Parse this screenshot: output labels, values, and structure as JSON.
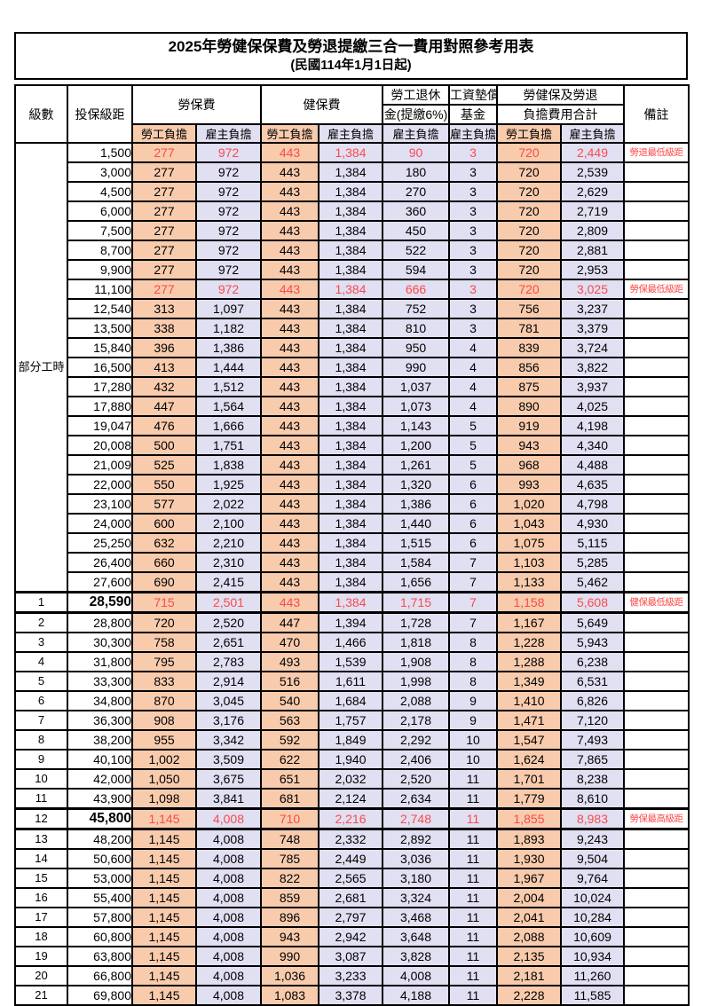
{
  "title": "2025年勞健保保費及勞退提繳三合一費用對照參考用表",
  "subtitle": "(民國114年1月1日起)",
  "header": {
    "level": "級數",
    "bracket": "投保級距",
    "labor_insurance": "勞保費",
    "health_insurance": "健保費",
    "pension_line1": "勞工退休",
    "pension_line2": "金(提繳6%)",
    "wage_fund_line1": "工資墊償",
    "wage_fund_line2": "基金",
    "total_line1": "勞健保及勞退",
    "total_line2": "負擔費用合計",
    "note": "備註",
    "employee_share": "勞工負擔",
    "employer_share": "雇主負擔"
  },
  "part_time_label": "部分工時",
  "colors": {
    "employee_bg": "#F8CBAD",
    "employer_bg": "#E1DFF2",
    "highlight_text": "#FB4A4A",
    "border": "#000000"
  },
  "rows": [
    {
      "level": "",
      "bracket": "1,500",
      "values": [
        "277",
        "972",
        "443",
        "1,384",
        "90",
        "3",
        "720",
        "2,449"
      ],
      "note": "勞退最低級距",
      "red": true,
      "bold": false
    },
    {
      "level": "",
      "bracket": "3,000",
      "values": [
        "277",
        "972",
        "443",
        "1,384",
        "180",
        "3",
        "720",
        "2,539"
      ],
      "note": "",
      "red": false,
      "bold": false
    },
    {
      "level": "",
      "bracket": "4,500",
      "values": [
        "277",
        "972",
        "443",
        "1,384",
        "270",
        "3",
        "720",
        "2,629"
      ],
      "note": "",
      "red": false,
      "bold": false
    },
    {
      "level": "",
      "bracket": "6,000",
      "values": [
        "277",
        "972",
        "443",
        "1,384",
        "360",
        "3",
        "720",
        "2,719"
      ],
      "note": "",
      "red": false,
      "bold": false
    },
    {
      "level": "",
      "bracket": "7,500",
      "values": [
        "277",
        "972",
        "443",
        "1,384",
        "450",
        "3",
        "720",
        "2,809"
      ],
      "note": "",
      "red": false,
      "bold": false
    },
    {
      "level": "",
      "bracket": "8,700",
      "values": [
        "277",
        "972",
        "443",
        "1,384",
        "522",
        "3",
        "720",
        "2,881"
      ],
      "note": "",
      "red": false,
      "bold": false
    },
    {
      "level": "",
      "bracket": "9,900",
      "values": [
        "277",
        "972",
        "443",
        "1,384",
        "594",
        "3",
        "720",
        "2,953"
      ],
      "note": "",
      "red": false,
      "bold": false
    },
    {
      "level": "",
      "bracket": "11,100",
      "values": [
        "277",
        "972",
        "443",
        "1,384",
        "666",
        "3",
        "720",
        "3,025"
      ],
      "note": "勞保最低級距",
      "red": true,
      "bold": false
    },
    {
      "level": "",
      "bracket": "12,540",
      "values": [
        "313",
        "1,097",
        "443",
        "1,384",
        "752",
        "3",
        "756",
        "3,237"
      ],
      "note": "",
      "red": false,
      "bold": false
    },
    {
      "level": "",
      "bracket": "13,500",
      "values": [
        "338",
        "1,182",
        "443",
        "1,384",
        "810",
        "3",
        "781",
        "3,379"
      ],
      "note": "",
      "red": false,
      "bold": false
    },
    {
      "level": "",
      "bracket": "15,840",
      "values": [
        "396",
        "1,386",
        "443",
        "1,384",
        "950",
        "4",
        "839",
        "3,724"
      ],
      "note": "",
      "red": false,
      "bold": false
    },
    {
      "level": "",
      "bracket": "16,500",
      "values": [
        "413",
        "1,444",
        "443",
        "1,384",
        "990",
        "4",
        "856",
        "3,822"
      ],
      "note": "",
      "red": false,
      "bold": false
    },
    {
      "level": "",
      "bracket": "17,280",
      "values": [
        "432",
        "1,512",
        "443",
        "1,384",
        "1,037",
        "4",
        "875",
        "3,937"
      ],
      "note": "",
      "red": false,
      "bold": false
    },
    {
      "level": "",
      "bracket": "17,880",
      "values": [
        "447",
        "1,564",
        "443",
        "1,384",
        "1,073",
        "4",
        "890",
        "4,025"
      ],
      "note": "",
      "red": false,
      "bold": false
    },
    {
      "level": "",
      "bracket": "19,047",
      "values": [
        "476",
        "1,666",
        "443",
        "1,384",
        "1,143",
        "5",
        "919",
        "4,198"
      ],
      "note": "",
      "red": false,
      "bold": false
    },
    {
      "level": "",
      "bracket": "20,008",
      "values": [
        "500",
        "1,751",
        "443",
        "1,384",
        "1,200",
        "5",
        "943",
        "4,340"
      ],
      "note": "",
      "red": false,
      "bold": false
    },
    {
      "level": "",
      "bracket": "21,009",
      "values": [
        "525",
        "1,838",
        "443",
        "1,384",
        "1,261",
        "5",
        "968",
        "4,488"
      ],
      "note": "",
      "red": false,
      "bold": false
    },
    {
      "level": "",
      "bracket": "22,000",
      "values": [
        "550",
        "1,925",
        "443",
        "1,384",
        "1,320",
        "6",
        "993",
        "4,635"
      ],
      "note": "",
      "red": false,
      "bold": false
    },
    {
      "level": "",
      "bracket": "23,100",
      "values": [
        "577",
        "2,022",
        "443",
        "1,384",
        "1,386",
        "6",
        "1,020",
        "4,798"
      ],
      "note": "",
      "red": false,
      "bold": false
    },
    {
      "level": "",
      "bracket": "24,000",
      "values": [
        "600",
        "2,100",
        "443",
        "1,384",
        "1,440",
        "6",
        "1,043",
        "4,930"
      ],
      "note": "",
      "red": false,
      "bold": false
    },
    {
      "level": "",
      "bracket": "25,250",
      "values": [
        "632",
        "2,210",
        "443",
        "1,384",
        "1,515",
        "6",
        "1,075",
        "5,115"
      ],
      "note": "",
      "red": false,
      "bold": false
    },
    {
      "level": "",
      "bracket": "26,400",
      "values": [
        "660",
        "2,310",
        "443",
        "1,384",
        "1,584",
        "7",
        "1,103",
        "5,285"
      ],
      "note": "",
      "red": false,
      "bold": false
    },
    {
      "level": "",
      "bracket": "27,600",
      "values": [
        "690",
        "2,415",
        "443",
        "1,384",
        "1,656",
        "7",
        "1,133",
        "5,462"
      ],
      "note": "",
      "red": false,
      "bold": false
    },
    {
      "level": "1",
      "bracket": "28,590",
      "values": [
        "715",
        "2,501",
        "443",
        "1,384",
        "1,715",
        "7",
        "1,158",
        "5,608"
      ],
      "note": "健保最低級距",
      "red": true,
      "bold": true
    },
    {
      "level": "2",
      "bracket": "28,800",
      "values": [
        "720",
        "2,520",
        "447",
        "1,394",
        "1,728",
        "7",
        "1,167",
        "5,649"
      ],
      "note": "",
      "red": false,
      "bold": false
    },
    {
      "level": "3",
      "bracket": "30,300",
      "values": [
        "758",
        "2,651",
        "470",
        "1,466",
        "1,818",
        "8",
        "1,228",
        "5,943"
      ],
      "note": "",
      "red": false,
      "bold": false
    },
    {
      "level": "4",
      "bracket": "31,800",
      "values": [
        "795",
        "2,783",
        "493",
        "1,539",
        "1,908",
        "8",
        "1,288",
        "6,238"
      ],
      "note": "",
      "red": false,
      "bold": false
    },
    {
      "level": "5",
      "bracket": "33,300",
      "values": [
        "833",
        "2,914",
        "516",
        "1,611",
        "1,998",
        "8",
        "1,349",
        "6,531"
      ],
      "note": "",
      "red": false,
      "bold": false
    },
    {
      "level": "6",
      "bracket": "34,800",
      "values": [
        "870",
        "3,045",
        "540",
        "1,684",
        "2,088",
        "9",
        "1,410",
        "6,826"
      ],
      "note": "",
      "red": false,
      "bold": false
    },
    {
      "level": "7",
      "bracket": "36,300",
      "values": [
        "908",
        "3,176",
        "563",
        "1,757",
        "2,178",
        "9",
        "1,471",
        "7,120"
      ],
      "note": "",
      "red": false,
      "bold": false
    },
    {
      "level": "8",
      "bracket": "38,200",
      "values": [
        "955",
        "3,342",
        "592",
        "1,849",
        "2,292",
        "10",
        "1,547",
        "7,493"
      ],
      "note": "",
      "red": false,
      "bold": false
    },
    {
      "level": "9",
      "bracket": "40,100",
      "values": [
        "1,002",
        "3,509",
        "622",
        "1,940",
        "2,406",
        "10",
        "1,624",
        "7,865"
      ],
      "note": "",
      "red": false,
      "bold": false
    },
    {
      "level": "10",
      "bracket": "42,000",
      "values": [
        "1,050",
        "3,675",
        "651",
        "2,032",
        "2,520",
        "11",
        "1,701",
        "8,238"
      ],
      "note": "",
      "red": false,
      "bold": false
    },
    {
      "level": "11",
      "bracket": "43,900",
      "values": [
        "1,098",
        "3,841",
        "681",
        "2,124",
        "2,634",
        "11",
        "1,779",
        "8,610"
      ],
      "note": "",
      "red": false,
      "bold": false
    },
    {
      "level": "12",
      "bracket": "45,800",
      "values": [
        "1,145",
        "4,008",
        "710",
        "2,216",
        "2,748",
        "11",
        "1,855",
        "8,983"
      ],
      "note": "勞保最高級距",
      "red": true,
      "bold": true
    },
    {
      "level": "13",
      "bracket": "48,200",
      "values": [
        "1,145",
        "4,008",
        "748",
        "2,332",
        "2,892",
        "11",
        "1,893",
        "9,243"
      ],
      "note": "",
      "red": false,
      "bold": false
    },
    {
      "level": "14",
      "bracket": "50,600",
      "values": [
        "1,145",
        "4,008",
        "785",
        "2,449",
        "3,036",
        "11",
        "1,930",
        "9,504"
      ],
      "note": "",
      "red": false,
      "bold": false
    },
    {
      "level": "15",
      "bracket": "53,000",
      "values": [
        "1,145",
        "4,008",
        "822",
        "2,565",
        "3,180",
        "11",
        "1,967",
        "9,764"
      ],
      "note": "",
      "red": false,
      "bold": false
    },
    {
      "level": "16",
      "bracket": "55,400",
      "values": [
        "1,145",
        "4,008",
        "859",
        "2,681",
        "3,324",
        "11",
        "2,004",
        "10,024"
      ],
      "note": "",
      "red": false,
      "bold": false
    },
    {
      "level": "17",
      "bracket": "57,800",
      "values": [
        "1,145",
        "4,008",
        "896",
        "2,797",
        "3,468",
        "11",
        "2,041",
        "10,284"
      ],
      "note": "",
      "red": false,
      "bold": false
    },
    {
      "level": "18",
      "bracket": "60,800",
      "values": [
        "1,145",
        "4,008",
        "943",
        "2,942",
        "3,648",
        "11",
        "2,088",
        "10,609"
      ],
      "note": "",
      "red": false,
      "bold": false
    },
    {
      "level": "19",
      "bracket": "63,800",
      "values": [
        "1,145",
        "4,008",
        "990",
        "3,087",
        "3,828",
        "11",
        "2,135",
        "10,934"
      ],
      "note": "",
      "red": false,
      "bold": false
    },
    {
      "level": "20",
      "bracket": "66,800",
      "values": [
        "1,145",
        "4,008",
        "1,036",
        "3,233",
        "4,008",
        "11",
        "2,181",
        "11,260"
      ],
      "note": "",
      "red": false,
      "bold": false
    },
    {
      "level": "21",
      "bracket": "69,800",
      "values": [
        "1,145",
        "4,008",
        "1,083",
        "3,378",
        "4,188",
        "11",
        "2,228",
        "11,585"
      ],
      "note": "",
      "red": false,
      "bold": false
    }
  ]
}
